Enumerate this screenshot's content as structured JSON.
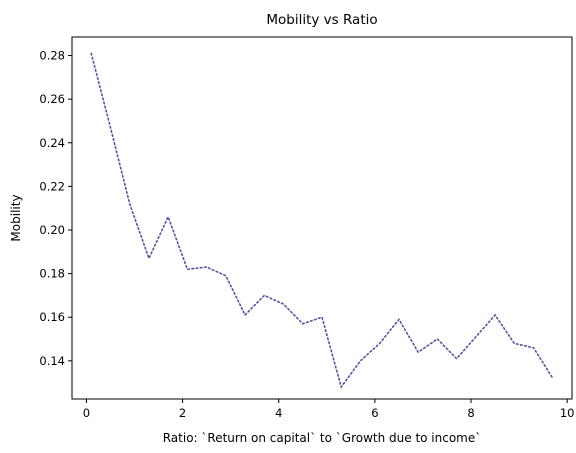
{
  "chart_data": {
    "type": "line",
    "title": "Mobility vs Ratio",
    "xlabel": "Ratio: `Return on capital` to `Growth due to income`",
    "ylabel": "Mobility",
    "xlim": [
      -0.3,
      10.1
    ],
    "ylim": [
      0.1225,
      0.2885
    ],
    "xticks": [
      0,
      2,
      4,
      6,
      8,
      10
    ],
    "xtick_labels": [
      "0",
      "2",
      "4",
      "6",
      "8",
      "10"
    ],
    "yticks": [
      0.14,
      0.16,
      0.18,
      0.2,
      0.22,
      0.24,
      0.26,
      0.28
    ],
    "ytick_labels": [
      "0.14",
      "0.16",
      "0.18",
      "0.20",
      "0.22",
      "0.24",
      "0.26",
      "0.28"
    ],
    "grid": false,
    "color": "#5a4fa8",
    "series": [
      {
        "x": [
          0.1,
          0.5,
          0.9,
          1.3,
          1.7,
          2.1,
          2.5,
          2.9,
          3.3,
          3.7,
          4.1,
          4.5,
          4.9,
          5.3,
          5.7,
          6.1,
          6.5,
          6.9,
          7.3,
          7.7,
          8.1,
          8.5,
          8.9,
          9.3,
          9.7
        ],
        "values": [
          0.281,
          0.247,
          0.212,
          0.187,
          0.206,
          0.182,
          0.183,
          0.179,
          0.161,
          0.17,
          0.166,
          0.157,
          0.16,
          0.128,
          0.14,
          0.148,
          0.159,
          0.144,
          0.15,
          0.141,
          0.151,
          0.161,
          0.148,
          0.146,
          0.132
        ]
      }
    ]
  }
}
